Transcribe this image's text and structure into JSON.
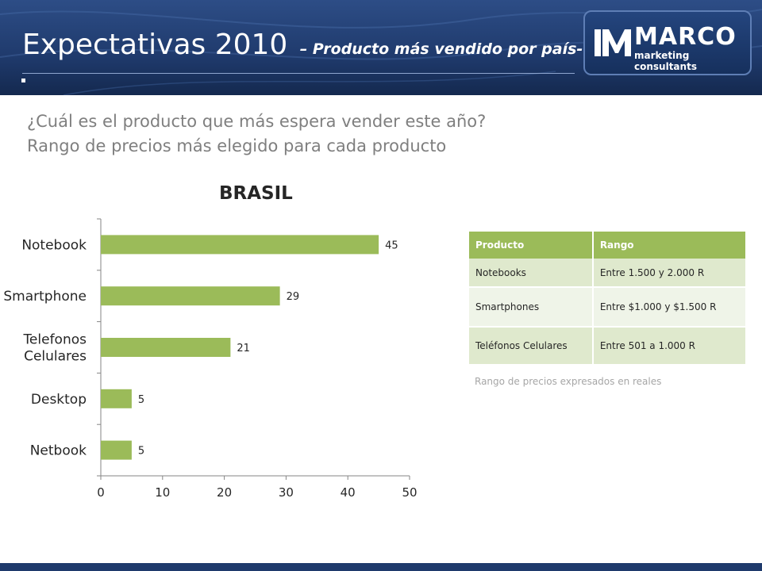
{
  "header": {
    "title": "Expectativas 2010",
    "subtitle": "– Producto más vendido por país-"
  },
  "logo": {
    "name": "MARCO",
    "tagline": "marketing consultants"
  },
  "question": {
    "line1": "¿Cuál es el producto que más espera vender este año?",
    "line2": "Rango de precios más elegido para cada producto"
  },
  "chart_data": {
    "type": "bar",
    "orientation": "horizontal",
    "title": "BRASIL",
    "categories": [
      "Notebook",
      "Smartphone",
      "Telefonos Celulares",
      "Desktop",
      "Netbook"
    ],
    "category_lines": [
      [
        "Notebook"
      ],
      [
        "Smartphone"
      ],
      [
        "Telefonos",
        "Celulares"
      ],
      [
        "Desktop"
      ],
      [
        "Netbook"
      ]
    ],
    "values": [
      45,
      29,
      21,
      5,
      5
    ],
    "xlim": [
      0,
      50
    ],
    "xticks": [
      0,
      10,
      20,
      30,
      40,
      50
    ],
    "bar_color": "#9bbb59",
    "grid": false
  },
  "table": {
    "headers": [
      "Producto",
      "Rango"
    ],
    "rows": [
      [
        "Notebooks",
        "Entre 1.500 y 2.000 R"
      ],
      [
        "Smartphones",
        "Entre $1.000 y $1.500 R"
      ],
      [
        "Teléfonos Celulares",
        "Entre 501 a 1.000 R"
      ]
    ],
    "note": "Rango de precios expresados en reales"
  },
  "colors": {
    "header_bg": "#1f3a6c",
    "accent_green": "#9bbb59",
    "text_gray": "#7f7f7f"
  }
}
